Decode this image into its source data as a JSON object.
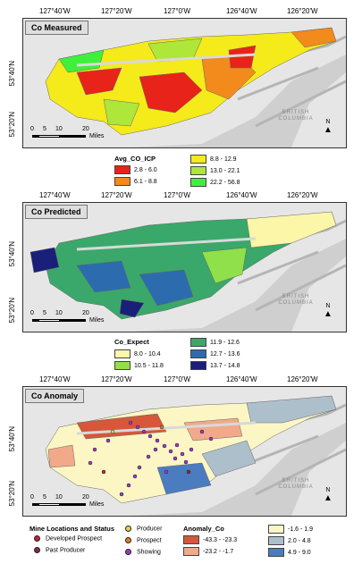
{
  "longitude_labels": [
    "127°40'W",
    "127°20'W",
    "127°0'W",
    "126°40'W",
    "126°20'W"
  ],
  "latitude_labels": [
    "53°40'N",
    "53°20'N"
  ],
  "scale_ticks": [
    "0",
    "5",
    "10",
    "20"
  ],
  "scale_unit": "Miles",
  "region_label": "BRITISH\nCOLUMBIA",
  "north_label": "N",
  "panels": [
    {
      "title": "Co Measured"
    },
    {
      "title": "Co Predicted"
    },
    {
      "title": "Co Anomaly"
    }
  ],
  "legend_measured": {
    "title": "Avg_CO_ICP",
    "items": [
      {
        "label": "2.8 - 6.0",
        "color": "#e8231a"
      },
      {
        "label": "6.1 - 8.8",
        "color": "#f28a1c"
      },
      {
        "label": "8.8 - 12.9",
        "color": "#f5ea1a"
      },
      {
        "label": "13.0 - 22.1",
        "color": "#aee63a"
      },
      {
        "label": "22.2 - 56.8",
        "color": "#3ff03a"
      }
    ]
  },
  "legend_predicted": {
    "title": "Co_Expect",
    "items": [
      {
        "label": "8.0 - 10.4",
        "color": "#fbf6a8"
      },
      {
        "label": "10.5 - 11.8",
        "color": "#8fe04a"
      },
      {
        "label": "11.9 - 12.6",
        "color": "#3aa86a"
      },
      {
        "label": "12.7 - 13.6",
        "color": "#2c6cae"
      },
      {
        "label": "13.7 - 14.8",
        "color": "#1a1f7a"
      }
    ]
  },
  "legend_anomaly": {
    "title": "Anomaly_Co",
    "items": [
      {
        "label": "-43.3 - -23.3",
        "color": "#d6573a"
      },
      {
        "label": "-23.2 - -1.7",
        "color": "#f1a98a"
      },
      {
        "label": "-1.6 - 1.9",
        "color": "#fbf6c4"
      },
      {
        "label": "2.0 - 4.8",
        "color": "#aebfcc"
      },
      {
        "label": "4.9 - 9.0",
        "color": "#4c7cc0"
      }
    ]
  },
  "legend_mines": {
    "title": "Mine Locations and Status",
    "items": [
      {
        "label": "Developed Prospect",
        "color": "#c0233a"
      },
      {
        "label": "Past Producer",
        "color": "#8a2a3a"
      },
      {
        "label": "Producer",
        "color": "#e8d44a"
      },
      {
        "label": "Prospect",
        "color": "#e87a2a"
      },
      {
        "label": "Showing",
        "color": "#9a3ac8"
      }
    ]
  }
}
